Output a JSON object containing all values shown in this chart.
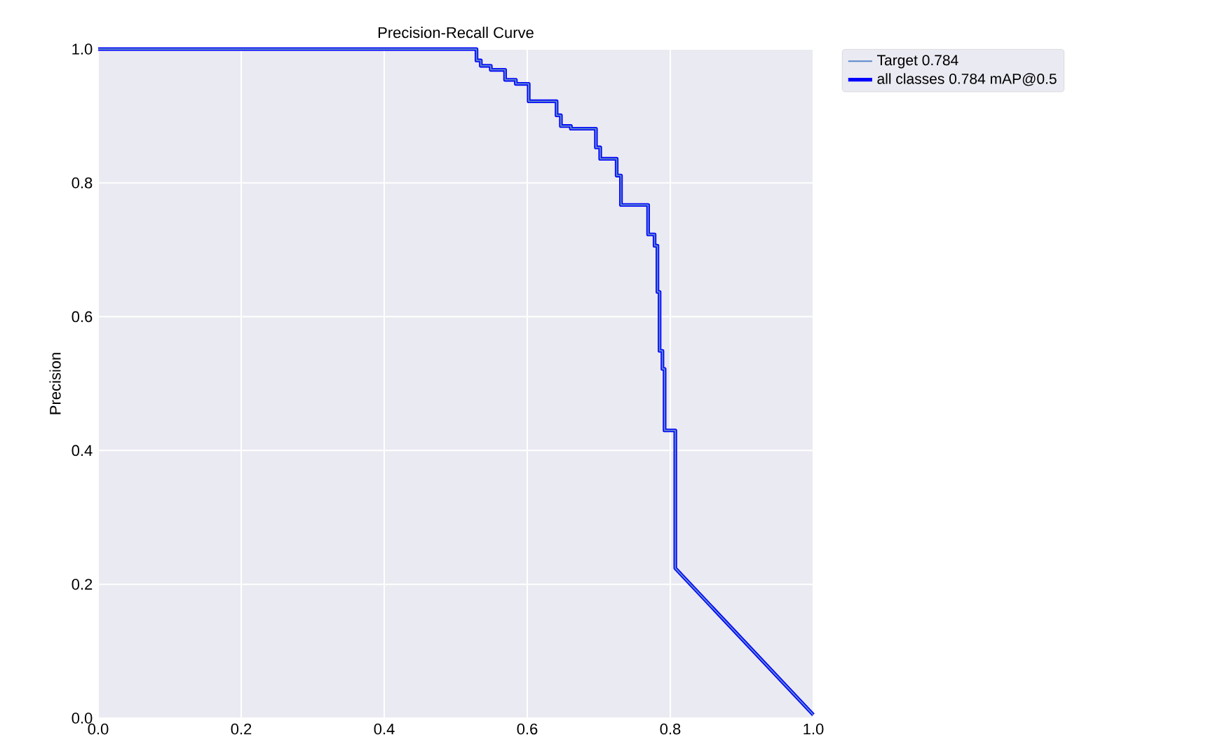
{
  "chart_data": {
    "type": "line",
    "title": "Precision-Recall Curve",
    "ylabel": "Precision",
    "xlim": [
      0,
      1
    ],
    "ylim": [
      0,
      1
    ],
    "xticks": [
      {
        "value": 0,
        "label": "0.0"
      },
      {
        "value": 0.2,
        "label": "0.2"
      },
      {
        "value": 0.4,
        "label": "0.4"
      },
      {
        "value": 0.6,
        "label": "0.6"
      },
      {
        "value": 0.8,
        "label": "0.8"
      },
      {
        "value": 1,
        "label": "1.0"
      }
    ],
    "yticks": [
      {
        "value": 0,
        "label": "0.0"
      },
      {
        "value": 0.2,
        "label": "0.2"
      },
      {
        "value": 0.4,
        "label": "0.4"
      },
      {
        "value": 0.6,
        "label": "0.6"
      },
      {
        "value": 0.8,
        "label": "0.8"
      },
      {
        "value": 1,
        "label": "1.0"
      }
    ],
    "grid": true,
    "legend": "top right",
    "marker": "none",
    "line_style": "solid",
    "x": [
      0,
      0.529,
      0.529,
      0.535,
      0.535,
      0.549,
      0.549,
      0.569,
      0.569,
      0.584,
      0.584,
      0.602,
      0.602,
      0.641,
      0.641,
      0.647,
      0.647,
      0.661,
      0.661,
      0.696,
      0.696,
      0.702,
      0.702,
      0.725,
      0.725,
      0.731,
      0.731,
      0.769,
      0.769,
      0.778,
      0.778,
      0.782,
      0.782,
      0.785,
      0.785,
      0.789,
      0.789,
      0.792,
      0.792,
      0.807,
      0.807,
      1.0
    ],
    "series": [
      {
        "name": "Target 0.784",
        "color": "#5a86cc",
        "values": [
          1.0,
          1.0,
          0.983,
          0.983,
          0.975,
          0.975,
          0.969,
          0.969,
          0.954,
          0.954,
          0.948,
          0.948,
          0.922,
          0.922,
          0.901,
          0.901,
          0.885,
          0.885,
          0.881,
          0.881,
          0.853,
          0.853,
          0.836,
          0.836,
          0.811,
          0.811,
          0.767,
          0.767,
          0.723,
          0.723,
          0.706,
          0.706,
          0.637,
          0.637,
          0.549,
          0.549,
          0.522,
          0.522,
          0.43,
          0.43,
          0.224,
          0.005
        ]
      },
      {
        "name": "all classes 0.784 mAP@0.5",
        "color": "#0000ff",
        "values": [
          1.0,
          1.0,
          0.983,
          0.983,
          0.975,
          0.975,
          0.969,
          0.969,
          0.954,
          0.954,
          0.948,
          0.948,
          0.922,
          0.922,
          0.901,
          0.901,
          0.885,
          0.885,
          0.881,
          0.881,
          0.853,
          0.853,
          0.836,
          0.836,
          0.811,
          0.811,
          0.767,
          0.767,
          0.723,
          0.723,
          0.706,
          0.706,
          0.637,
          0.637,
          0.549,
          0.549,
          0.522,
          0.522,
          0.43,
          0.43,
          0.224,
          0.005
        ]
      }
    ]
  }
}
